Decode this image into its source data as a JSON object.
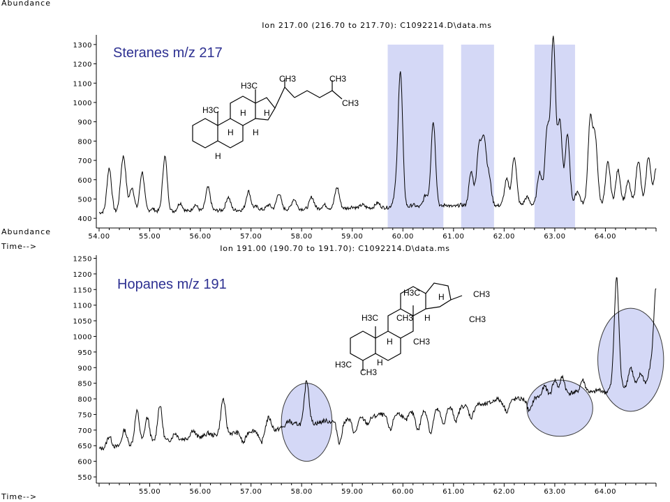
{
  "colors": {
    "highlight": "#d4d8f6",
    "highlight_stroke": "#3a3a3a",
    "label": "#2e3192",
    "line": "#000000"
  },
  "structures": {
    "sterane": [
      "H3C",
      "CH3",
      "CH3",
      "CH3",
      "H3C",
      "H",
      "H",
      "H",
      "H",
      "H"
    ],
    "hopane": [
      "H3C",
      "H",
      "CH3",
      "CH3",
      "H3C",
      "CH3",
      "H",
      "CH3",
      "H",
      "H3C",
      "CH3",
      "H"
    ]
  },
  "chart_data": [
    {
      "type": "line",
      "title": "Ion 217.00 (216.70 to 217.70): C1092214.D\\data.ms",
      "ylabel": "Abundance",
      "xlabel": "Time-->",
      "annotation": "Steranes m/z 217",
      "xlim": [
        54.0,
        65.0
      ],
      "ylim": [
        350,
        1350
      ],
      "x_ticks": [
        "54.00",
        "55.00",
        "56.00",
        "57.00",
        "58.00",
        "59.00",
        "60.00",
        "61.00",
        "62.00",
        "63.00",
        "64.00"
      ],
      "y_ticks": [
        "400",
        "500",
        "600",
        "700",
        "800",
        "900",
        "1000",
        "1100",
        "1200",
        "1300"
      ],
      "highlight_ranges": [
        [
          59.7,
          60.8
        ],
        [
          61.15,
          61.8
        ],
        [
          62.6,
          63.4
        ]
      ],
      "baseline_start": 430,
      "baseline_end": 480,
      "noise": 18,
      "seed": 7,
      "peaks": [
        {
          "x": 54.2,
          "y": 660
        },
        {
          "x": 54.45,
          "y": 580
        },
        {
          "x": 54.5,
          "y": 620
        },
        {
          "x": 54.65,
          "y": 560
        },
        {
          "x": 54.85,
          "y": 640
        },
        {
          "x": 55.05,
          "y": 450
        },
        {
          "x": 55.3,
          "y": 720
        },
        {
          "x": 55.6,
          "y": 480
        },
        {
          "x": 55.9,
          "y": 470
        },
        {
          "x": 56.15,
          "y": 560
        },
        {
          "x": 56.55,
          "y": 510
        },
        {
          "x": 56.95,
          "y": 540
        },
        {
          "x": 57.1,
          "y": 460
        },
        {
          "x": 57.35,
          "y": 470
        },
        {
          "x": 57.55,
          "y": 530
        },
        {
          "x": 57.85,
          "y": 500
        },
        {
          "x": 58.2,
          "y": 510
        },
        {
          "x": 58.45,
          "y": 470
        },
        {
          "x": 58.7,
          "y": 560
        },
        {
          "x": 59.0,
          "y": 460
        },
        {
          "x": 59.2,
          "y": 470
        },
        {
          "x": 59.5,
          "y": 480
        },
        {
          "x": 59.85,
          "y": 520
        },
        {
          "x": 59.95,
          "y": 1160
        },
        {
          "x": 60.2,
          "y": 470
        },
        {
          "x": 60.45,
          "y": 520
        },
        {
          "x": 60.6,
          "y": 900
        },
        {
          "x": 60.85,
          "y": 470
        },
        {
          "x": 61.15,
          "y": 470
        },
        {
          "x": 61.35,
          "y": 640
        },
        {
          "x": 61.5,
          "y": 760
        },
        {
          "x": 61.6,
          "y": 800
        },
        {
          "x": 61.7,
          "y": 610
        },
        {
          "x": 62.05,
          "y": 600
        },
        {
          "x": 62.2,
          "y": 720
        },
        {
          "x": 62.45,
          "y": 510
        },
        {
          "x": 62.7,
          "y": 640
        },
        {
          "x": 62.85,
          "y": 860
        },
        {
          "x": 62.97,
          "y": 1330
        },
        {
          "x": 63.1,
          "y": 900
        },
        {
          "x": 63.25,
          "y": 830
        },
        {
          "x": 63.45,
          "y": 540
        },
        {
          "x": 63.7,
          "y": 900
        },
        {
          "x": 63.8,
          "y": 800
        },
        {
          "x": 64.05,
          "y": 690
        },
        {
          "x": 64.25,
          "y": 650
        },
        {
          "x": 64.45,
          "y": 590
        },
        {
          "x": 64.65,
          "y": 700
        },
        {
          "x": 64.85,
          "y": 720
        },
        {
          "x": 65.0,
          "y": 650
        }
      ]
    },
    {
      "type": "line",
      "title": "Ion 191.00 (190.70 to 191.70): C1092214.D\\data.ms",
      "ylabel": "Abundance",
      "xlabel": "Time-->",
      "annotation": "Hopanes m/z 191",
      "xlim": [
        54.0,
        65.0
      ],
      "ylim": [
        530,
        1260
      ],
      "x_ticks": [
        "55.00",
        "56.00",
        "57.00",
        "58.00",
        "59.00",
        "60.00",
        "61.00",
        "62.00",
        "63.00",
        "64.00"
      ],
      "y_ticks": [
        "550",
        "600",
        "650",
        "700",
        "750",
        "800",
        "850",
        "900",
        "950",
        "1000",
        "1050",
        "1100",
        "1150",
        "1200",
        "1250"
      ],
      "highlight_ellipses": [
        [
          57.6,
          58.6,
          600,
          850
        ],
        [
          62.45,
          63.75,
          680,
          860
        ],
        [
          63.85,
          65.15,
          760,
          1090
        ]
      ],
      "baseline_start": 640,
      "baseline_end": 850,
      "noise": 14,
      "seed": 13,
      "peaks": [
        {
          "x": 54.2,
          "y": 680
        },
        {
          "x": 54.5,
          "y": 700
        },
        {
          "x": 54.75,
          "y": 760
        },
        {
          "x": 54.95,
          "y": 740
        },
        {
          "x": 55.2,
          "y": 780
        },
        {
          "x": 55.5,
          "y": 690
        },
        {
          "x": 55.85,
          "y": 700
        },
        {
          "x": 56.15,
          "y": 690
        },
        {
          "x": 56.45,
          "y": 800
        },
        {
          "x": 56.85,
          "y": 660
        },
        {
          "x": 57.2,
          "y": 660
        },
        {
          "x": 57.35,
          "y": 740
        },
        {
          "x": 57.5,
          "y": 700
        },
        {
          "x": 57.75,
          "y": 730
        },
        {
          "x": 57.9,
          "y": 720
        },
        {
          "x": 58.1,
          "y": 860
        },
        {
          "x": 58.45,
          "y": 730
        },
        {
          "x": 58.75,
          "y": 660
        },
        {
          "x": 59.05,
          "y": 690
        },
        {
          "x": 59.3,
          "y": 720
        },
        {
          "x": 59.55,
          "y": 750
        },
        {
          "x": 59.75,
          "y": 700
        },
        {
          "x": 60.05,
          "y": 730
        },
        {
          "x": 60.3,
          "y": 700
        },
        {
          "x": 60.55,
          "y": 690
        },
        {
          "x": 60.8,
          "y": 720
        },
        {
          "x": 61.05,
          "y": 730
        },
        {
          "x": 61.35,
          "y": 740
        },
        {
          "x": 61.6,
          "y": 780
        },
        {
          "x": 61.85,
          "y": 800
        },
        {
          "x": 62.05,
          "y": 760
        },
        {
          "x": 62.25,
          "y": 800
        },
        {
          "x": 62.5,
          "y": 760
        },
        {
          "x": 62.8,
          "y": 840
        },
        {
          "x": 63.0,
          "y": 860
        },
        {
          "x": 63.15,
          "y": 870
        },
        {
          "x": 63.35,
          "y": 820
        },
        {
          "x": 63.55,
          "y": 860
        },
        {
          "x": 63.75,
          "y": 820
        },
        {
          "x": 64.0,
          "y": 820
        },
        {
          "x": 64.22,
          "y": 1190
        },
        {
          "x": 64.5,
          "y": 900
        },
        {
          "x": 64.7,
          "y": 880
        },
        {
          "x": 64.9,
          "y": 900
        },
        {
          "x": 65.0,
          "y": 1150
        }
      ]
    }
  ]
}
